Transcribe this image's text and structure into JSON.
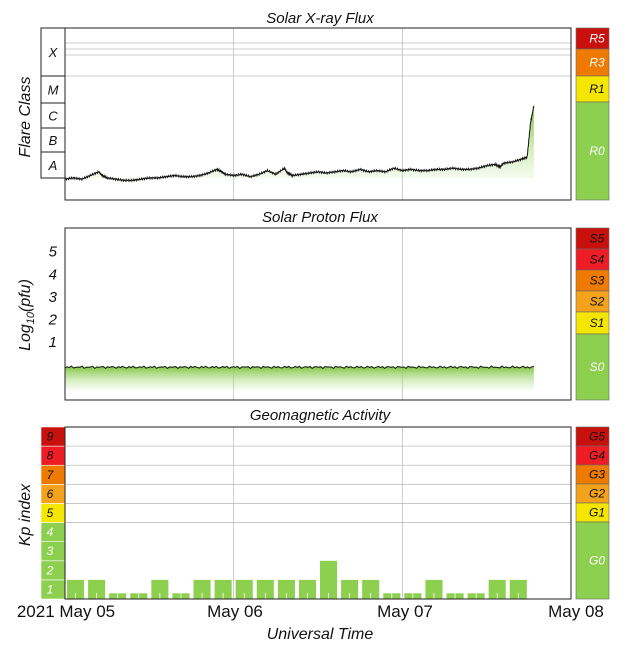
{
  "colors": {
    "green": "#8dcf4e",
    "yellow": "#f5e600",
    "orange": "#f4a21b",
    "dark_orange": "#ef7a00",
    "red": "#ee1c25",
    "dark_red": "#c8100c",
    "grid": "#bfbfbf"
  },
  "x_axis": {
    "label": "Universal Time",
    "ticks": [
      "2021 May 05",
      "May 06",
      "May 07",
      "May 08"
    ]
  },
  "chart_data": [
    {
      "type": "area",
      "title": "Solar X-ray Flux",
      "ylabel": "Flare Class",
      "flare_classes": [
        "X",
        "M",
        "C",
        "B",
        "A"
      ],
      "x_unit": "days since 2021 May 05 00:00 UT",
      "xlim": [
        0,
        3
      ],
      "scale_labels": [
        "R5",
        "R3",
        "R1",
        "R0"
      ],
      "series": [
        {
          "values_x": [
            0,
            0.05,
            0.1,
            0.15,
            0.2,
            0.22,
            0.25,
            0.3,
            0.35,
            0.4,
            0.45,
            0.5,
            0.55,
            0.6,
            0.65,
            0.7,
            0.75,
            0.8,
            0.85,
            0.9,
            0.93,
            0.95,
            1.0,
            1.05,
            1.1,
            1.15,
            1.2,
            1.25,
            1.3,
            1.32,
            1.35,
            1.4,
            1.45,
            1.5,
            1.55,
            1.6,
            1.65,
            1.7,
            1.75,
            1.8,
            1.85,
            1.9,
            1.95,
            2.0,
            2.05,
            2.1,
            2.15,
            2.2,
            2.25,
            2.3,
            2.35,
            2.4,
            2.45,
            2.5,
            2.55,
            2.58,
            2.6,
            2.65,
            2.7,
            2.74,
            2.76,
            2.78
          ],
          "values_level": [
            1.4,
            1.45,
            1.4,
            1.55,
            1.7,
            1.55,
            1.45,
            1.4,
            1.35,
            1.35,
            1.4,
            1.45,
            1.45,
            1.5,
            1.55,
            1.5,
            1.5,
            1.55,
            1.65,
            1.8,
            1.7,
            1.6,
            1.55,
            1.6,
            1.5,
            1.6,
            1.75,
            1.6,
            1.85,
            1.65,
            1.55,
            1.6,
            1.65,
            1.7,
            1.65,
            1.7,
            1.75,
            1.7,
            1.8,
            1.7,
            1.75,
            1.7,
            1.85,
            1.75,
            1.8,
            1.75,
            1.75,
            1.8,
            1.8,
            1.85,
            1.8,
            1.8,
            1.85,
            1.95,
            2.0,
            1.9,
            2.05,
            2.1,
            2.2,
            2.3,
            3.7,
            4.4
          ]
        }
      ]
    },
    {
      "type": "area",
      "title": "Solar Proton Flux",
      "ylabel": "Log10(pfu)",
      "ylabel_base": "Log",
      "ylabel_sub": "10",
      "ylabel_tail": "(pfu)",
      "ylim": [
        -1.6,
        6
      ],
      "yticks": [
        "1",
        "2",
        "3",
        "4",
        "5"
      ],
      "scale_labels": [
        "S5",
        "S4",
        "S3",
        "S2",
        "S1",
        "S0"
      ],
      "series": [
        {
          "level_log10_pfu": -0.15,
          "x_range": [
            0,
            2.78
          ]
        }
      ]
    },
    {
      "type": "bar",
      "title": "Geomagnetic Activity",
      "ylabel": "Kp index",
      "kp_ticks": [
        "1",
        "2",
        "3",
        "4",
        "5",
        "6",
        "7",
        "8",
        "9"
      ],
      "scale_labels": [
        "G5",
        "G4",
        "G3",
        "G2",
        "G1",
        "G0"
      ],
      "bar_interval_days": 0.125,
      "values": [
        1,
        1,
        0.3,
        0.3,
        1,
        0.3,
        1,
        1,
        1,
        1,
        1,
        1,
        2,
        1,
        1,
        0.3,
        0.3,
        1,
        0.3,
        0.3,
        1,
        1
      ]
    }
  ]
}
